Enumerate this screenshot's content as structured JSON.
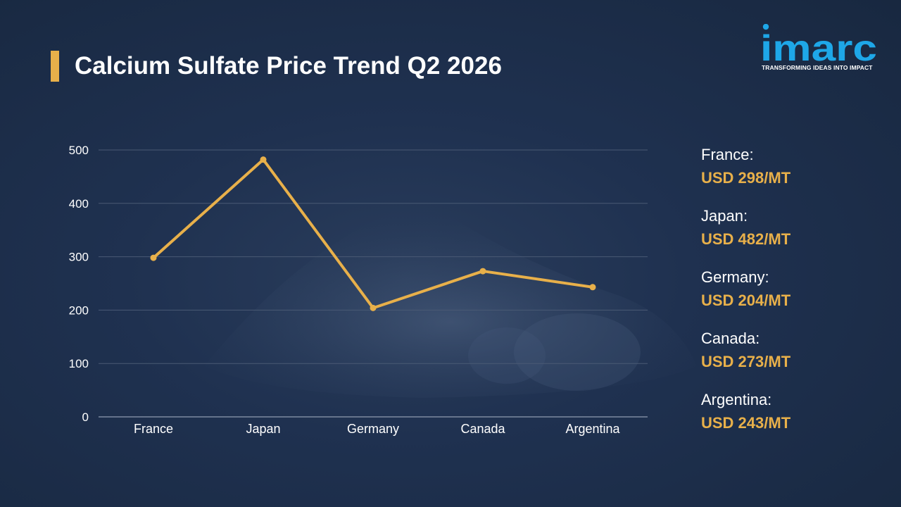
{
  "page": {
    "title": "Calcium Sulfate Price Trend Q2 2026"
  },
  "logo": {
    "text": "imarc",
    "tagline": "TRANSFORMING IDEAS INTO IMPACT"
  },
  "colors": {
    "accent": "#e8b04a",
    "background": "#1f3150",
    "logo": "#1ea7e8",
    "grid": "#4a5a74"
  },
  "chart_data": {
    "type": "line",
    "categories": [
      "France",
      "Japan",
      "Germany",
      "Canada",
      "Argentina"
    ],
    "values": [
      298,
      482,
      204,
      273,
      243
    ],
    "title": "",
    "xlabel": "",
    "ylabel": "",
    "ylim": [
      0,
      500
    ],
    "yticks": [
      0,
      100,
      200,
      300,
      400,
      500
    ],
    "grid": true,
    "legend": "none"
  },
  "legend": {
    "items": [
      {
        "country": "France:",
        "price": "USD 298/MT"
      },
      {
        "country": "Japan:",
        "price": "USD 482/MT"
      },
      {
        "country": "Germany:",
        "price": "USD 204/MT"
      },
      {
        "country": "Canada:",
        "price": "USD 273/MT"
      },
      {
        "country": "Argentina:",
        "price": "USD 243/MT"
      }
    ]
  }
}
